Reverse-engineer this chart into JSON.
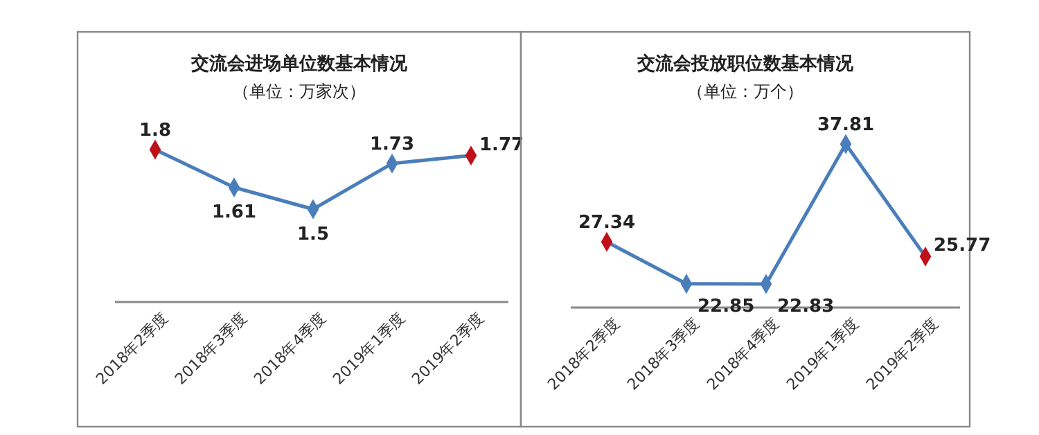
{
  "chart_data": [
    {
      "type": "line",
      "title": "交流会进场单位数基本情况",
      "subtitle": "（单位：万家次）",
      "categories": [
        "2018年2季度",
        "2018年3季度",
        "2018年4季度",
        "2019年1季度",
        "2019年2季度"
      ],
      "series": [
        {
          "color": "#4a7ebb",
          "colors": [
            "#c0101a",
            "#4a7ebb",
            "#4a7ebb",
            "#4a7ebb",
            "#c0101a"
          ],
          "values": [
            1.8,
            1.61,
            1.5,
            1.73,
            1.77
          ]
        }
      ],
      "marker": "diamond",
      "data_labels": true
    },
    {
      "type": "line",
      "title": "交流会投放职位数基本情况",
      "subtitle": "（单位：万个）",
      "categories": [
        "2018年2季度",
        "2018年3季度",
        "2018年4季度",
        "2019年1季度",
        "2019年2季度"
      ],
      "series": [
        {
          "color": "#4a7ebb",
          "colors": [
            "#c0101a",
            "#4a7ebb",
            "#4a7ebb",
            "#4a7ebb",
            "#c0101a"
          ],
          "values": [
            27.34,
            22.85,
            22.83,
            37.81,
            25.77
          ]
        }
      ],
      "marker": "diamond",
      "data_labels": true
    }
  ]
}
